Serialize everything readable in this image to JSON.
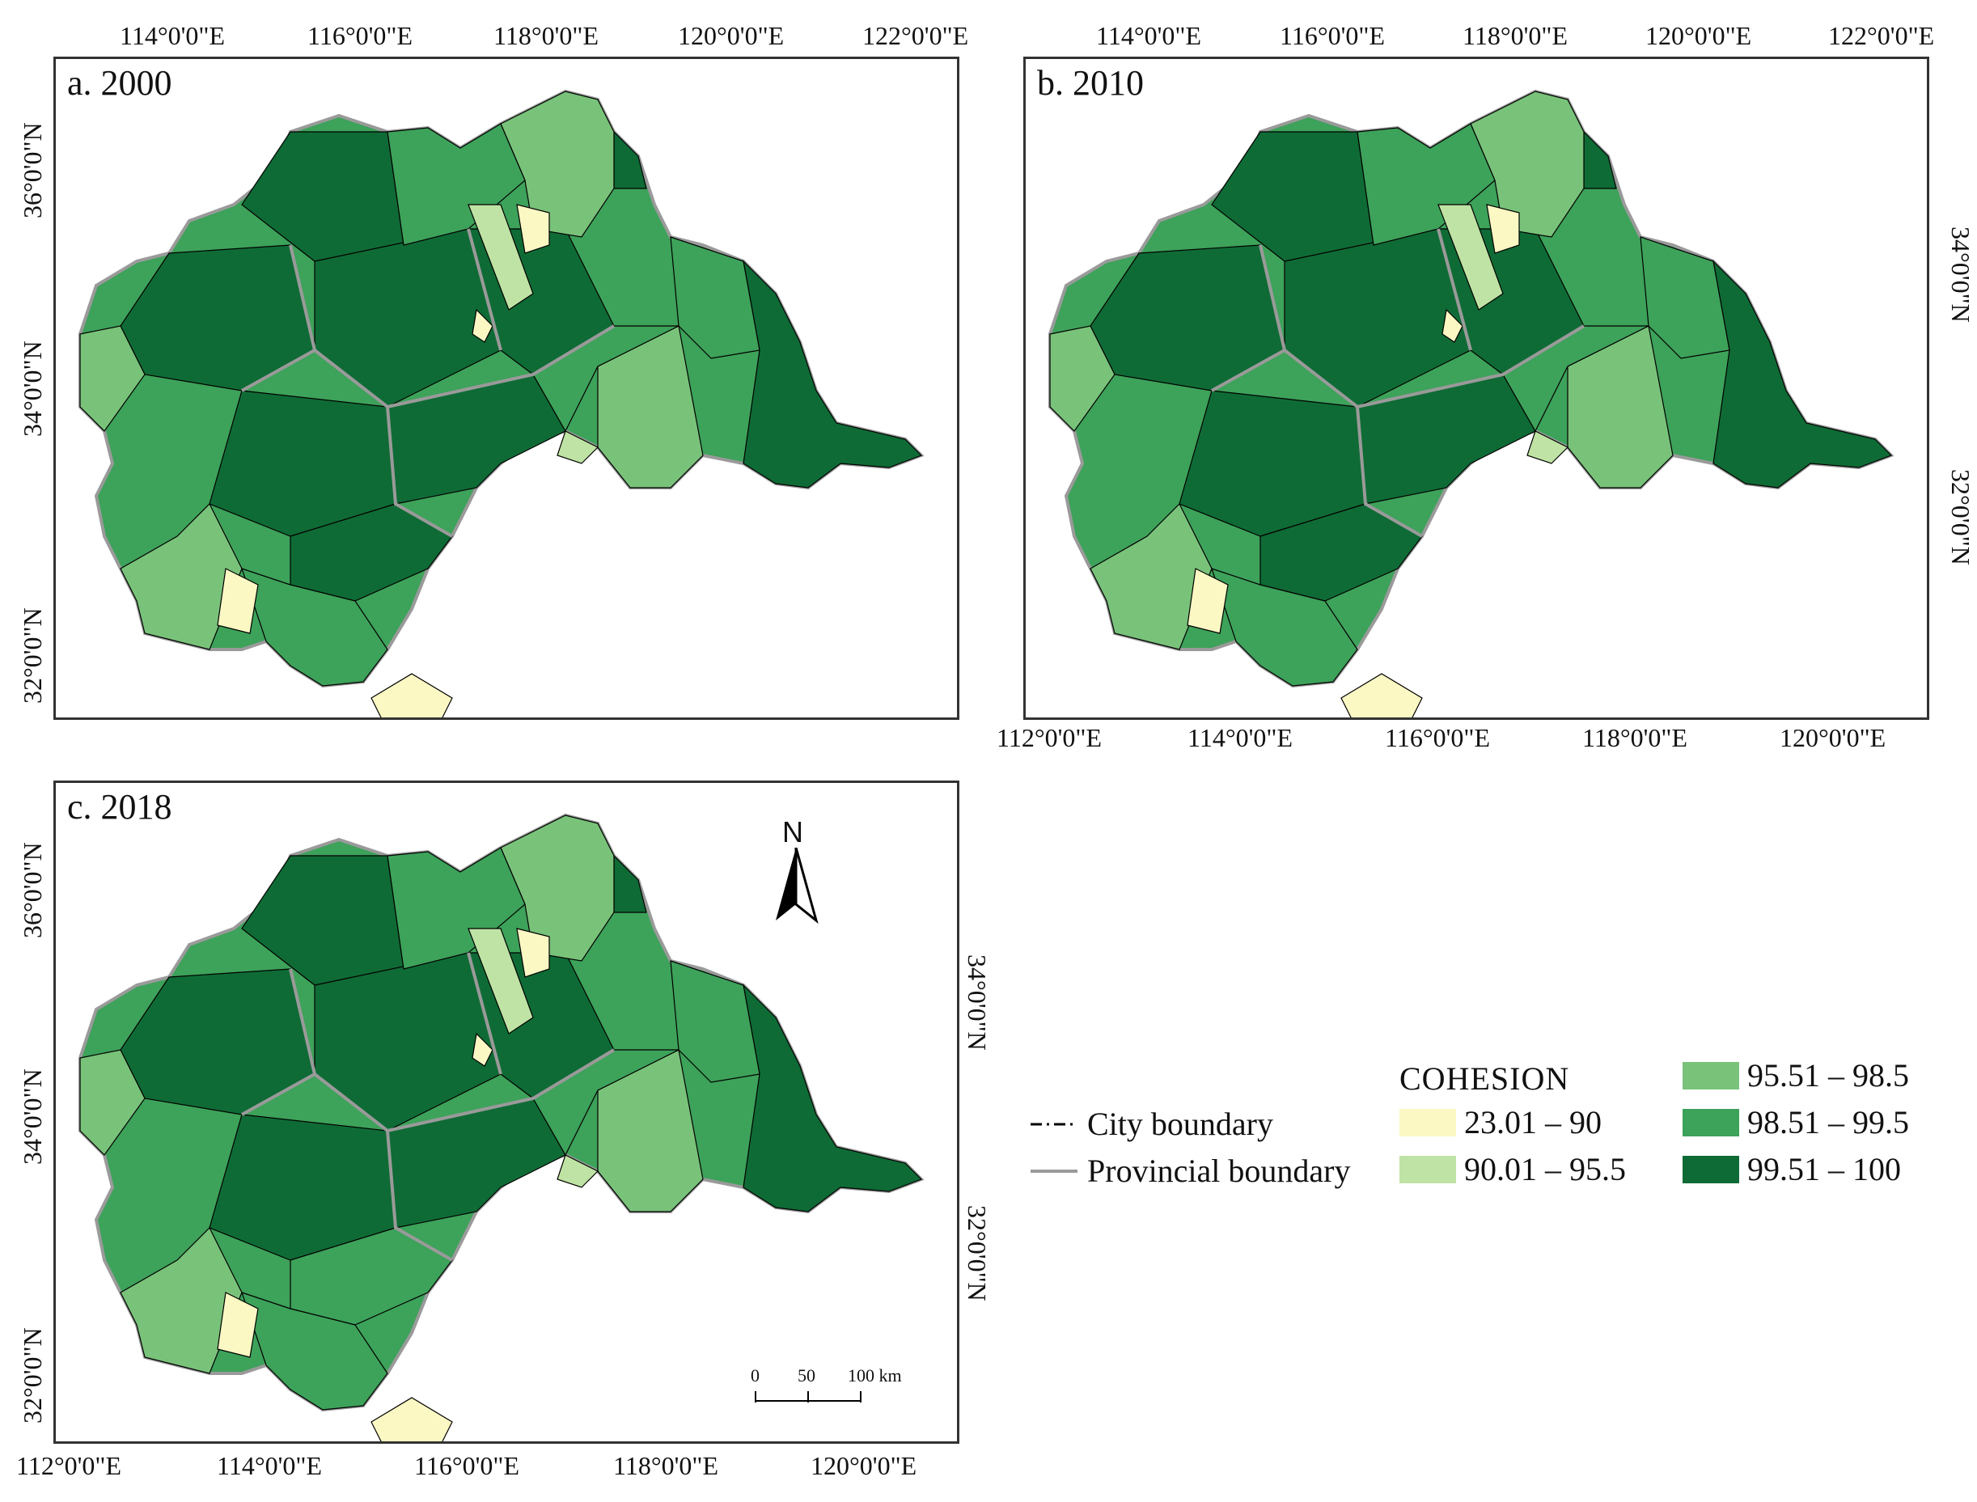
{
  "panels": [
    {
      "label": "a. 2000"
    },
    {
      "label": "b. 2010"
    },
    {
      "label": "c. 2018"
    }
  ],
  "axis_labels": {
    "top_a": [
      "114°0'0\"E",
      "116°0'0\"E",
      "118°0'0\"E",
      "120°0'0\"E",
      "122°0'0\"E"
    ],
    "left_a": [
      "36°0'0\"N",
      "34°0'0\"N",
      "34°0'0\"N",
      "32°0'0\"N"
    ],
    "top_b": [
      "114°0'0\"E",
      "116°0'0\"E",
      "118°0'0\"E",
      "120°0'0\"E",
      "122°0'0\"E"
    ],
    "bottom_b": [
      "112°0'0\"E",
      "114°0'0\"E",
      "116°0'0\"E",
      "118°0'0\"E",
      "120°0'0\"E"
    ],
    "right_b": [
      "34°0'0\"N",
      "32°0'0\"N"
    ],
    "left_c": [
      "36°0'0\"N",
      "34°0'0\"N",
      "34°0'0\"N",
      "32°0'0\"N"
    ],
    "right_c": [
      "34°0'0\"N",
      "32°0'0\"N"
    ],
    "bottom_c": [
      "112°0'0\"E",
      "114°0'0\"E",
      "116°0'0\"E",
      "118°0'0\"E",
      "120°0'0\"E"
    ]
  },
  "north_arrow": {
    "label": "N"
  },
  "scale_bar": {
    "labels": [
      "0",
      "50",
      "100 km"
    ]
  },
  "legend": {
    "title": "COHESION",
    "lines": [
      {
        "label": "City boundary",
        "style": "dash-dot"
      },
      {
        "label": "Provincial boundary",
        "style": "solid-gray"
      }
    ],
    "classes": [
      {
        "range": "23.01 – 90",
        "color": "#fbf8c4"
      },
      {
        "range": "90.01 – 95.5",
        "color": "#bfe3a4"
      },
      {
        "range": "95.51 – 98.5",
        "color": "#79c27a"
      },
      {
        "range": "98.51 – 99.5",
        "color": "#3da25a"
      },
      {
        "range": "99.51 – 100",
        "color": "#0f6b35"
      }
    ]
  },
  "colors": {
    "class1": "#fbf8c4",
    "class2": "#bfe3a4",
    "class3": "#79c27a",
    "class4": "#3da25a",
    "class5": "#0f6b35",
    "provincial": "#9a9a9a",
    "city": "#000000"
  }
}
